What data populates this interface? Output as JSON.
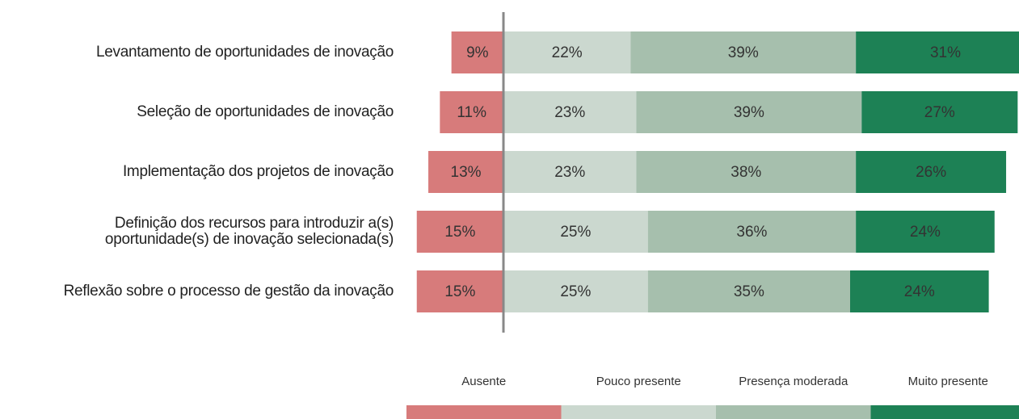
{
  "chart_data": {
    "type": "diverging_bar",
    "categories": [
      "Levantamento de oportunidades de inovação",
      "Seleção de oportunidades de inovação",
      "Implementação dos projetos de inovação",
      "Definição dos recursos para introduzir a(s)\noportunidade(s) de inovação selecionada(s)",
      "Reflexão sobre o processo de gestão da inovação"
    ],
    "series": [
      {
        "name": "Ausente",
        "color": "#d77b7b",
        "values": [
          9,
          11,
          13,
          15,
          15
        ],
        "value_labels": [
          "9%",
          "11%",
          "13%",
          "15%",
          "15%"
        ]
      },
      {
        "name": "Pouco presente",
        "color": "#cbd8cf",
        "values": [
          22,
          23,
          23,
          25,
          25
        ],
        "value_labels": [
          "22%",
          "23%",
          "23%",
          "25%",
          "25%"
        ]
      },
      {
        "name": "Presença moderada",
        "color": "#a6bfad",
        "values": [
          39,
          39,
          38,
          36,
          35
        ],
        "value_labels": [
          "39%",
          "39%",
          "38%",
          "36%",
          "35%"
        ]
      },
      {
        "name": "Muito presente",
        "color": "#1d8155",
        "values": [
          31,
          27,
          26,
          24,
          24
        ],
        "value_labels": [
          "31%",
          "27%",
          "26%",
          "24%",
          "24%"
        ]
      }
    ]
  }
}
